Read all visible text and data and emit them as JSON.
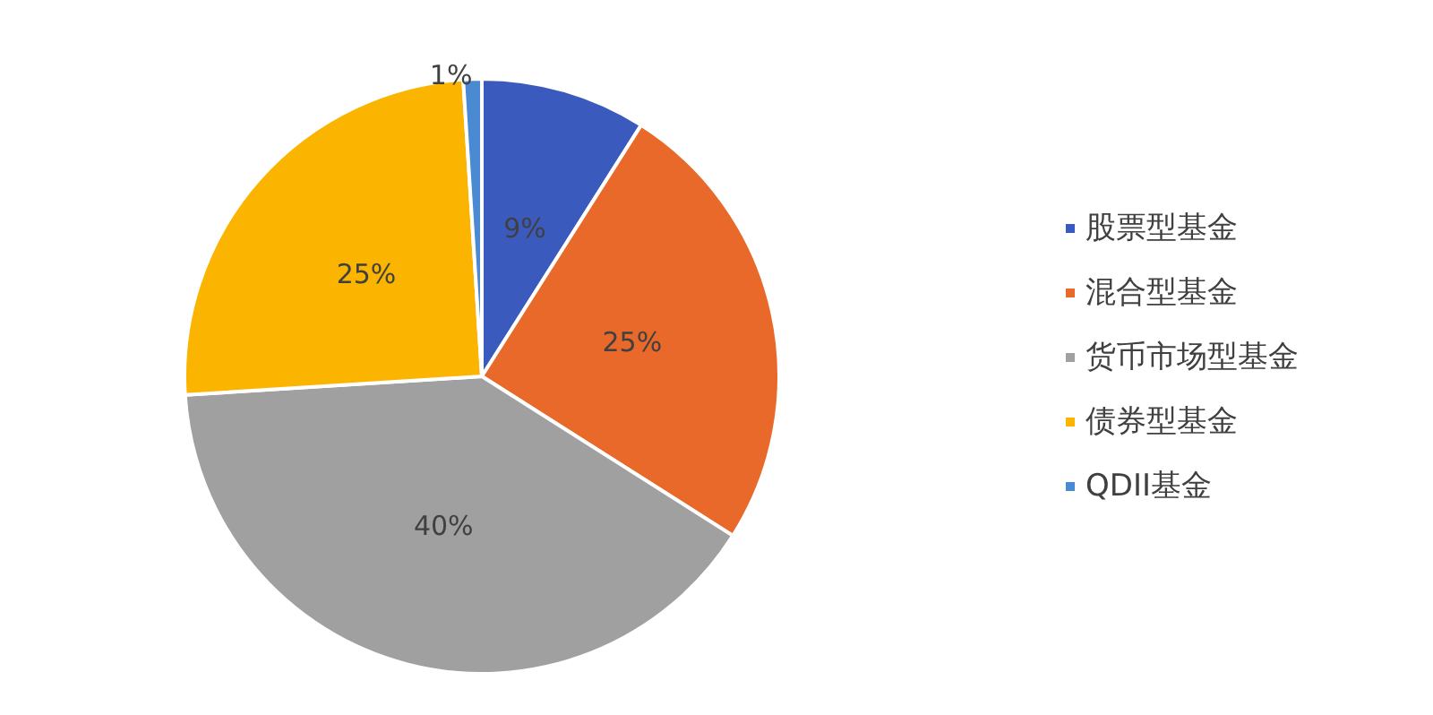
{
  "chart_data": {
    "type": "pie",
    "categories": [
      "股票型基金",
      "混合型基金",
      "货币市场型基金",
      "债券型基金",
      "QDII基金"
    ],
    "values": [
      9,
      25,
      40,
      25,
      1
    ],
    "value_labels": [
      "9%",
      "25%",
      "40%",
      "25%",
      "1%"
    ],
    "colors": [
      "#3a5bbd",
      "#e8692a",
      "#a0a0a0",
      "#fbb400",
      "#4a8ad2"
    ],
    "legend": "right"
  }
}
